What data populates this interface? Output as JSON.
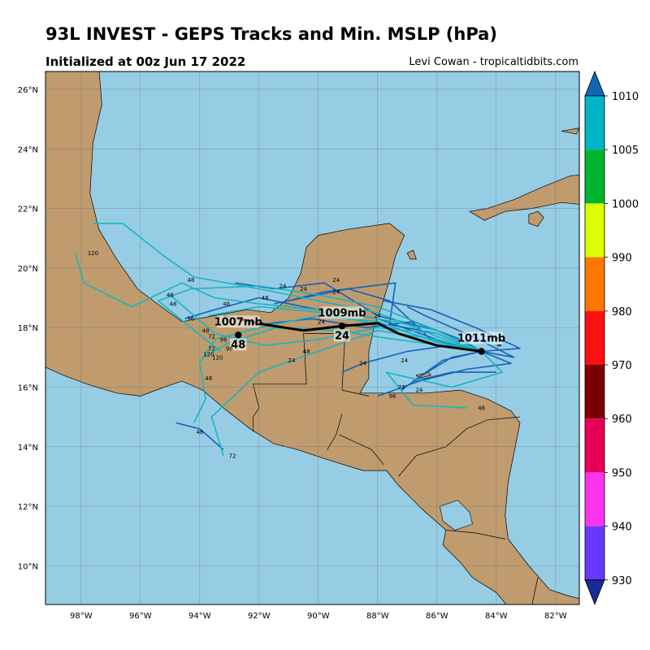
{
  "header": {
    "title": "93L INVEST - GEPS Tracks and Min. MSLP (hPa)",
    "subtitle": "Initialized at 00z Jun 17 2022",
    "credit": "Levi Cowan - tropicaltidbits.com"
  },
  "map": {
    "lon_range": [
      -99.2,
      -81.2
    ],
    "lat_range": [
      8.7,
      26.6
    ],
    "lon_ticks": [
      "98°W",
      "96°W",
      "94°W",
      "92°W",
      "90°W",
      "88°W",
      "86°W",
      "84°W",
      "82°W"
    ],
    "lat_ticks": [
      "10°N",
      "12°N",
      "14°N",
      "16°N",
      "18°N",
      "20°N",
      "22°N",
      "24°N",
      "26°N"
    ],
    "colors": {
      "ocean": "#96cde4",
      "land": "#bf9b6e",
      "mean_track": "#000000",
      "track_dark": "#1560bd",
      "track_light": "#18b4c2"
    }
  },
  "mean_track": {
    "points": [
      [
        -84.5,
        17.2
      ],
      [
        -86.0,
        17.4
      ],
      [
        -87.3,
        17.8
      ],
      [
        -88.0,
        18.15
      ],
      [
        -89.2,
        18.05
      ],
      [
        -90.5,
        17.9
      ],
      [
        -91.8,
        18.1
      ],
      [
        -92.7,
        18.3
      ]
    ],
    "labels": [
      {
        "lon": -84.5,
        "lat": 17.2,
        "text": "1011mb",
        "pos": "above"
      },
      {
        "lon": -89.2,
        "lat": 18.05,
        "text": "1009mb",
        "pos": "above"
      },
      {
        "lon": -89.2,
        "lat": 18.05,
        "text": "24",
        "pos": "below"
      },
      {
        "lon": -92.7,
        "lat": 17.75,
        "text": "1007mb",
        "pos": "above"
      },
      {
        "lon": -92.7,
        "lat": 17.75,
        "text": "48",
        "pos": "below"
      }
    ]
  },
  "tracks": [
    {
      "color": "dark",
      "points": [
        [
          -84.5,
          17.2
        ],
        [
          -86,
          17.6
        ],
        [
          -88,
          18.3
        ],
        [
          -90,
          18.6
        ],
        [
          -92,
          19.0
        ],
        [
          -93.5,
          18.6
        ],
        [
          -94.5,
          18.3
        ]
      ]
    },
    {
      "color": "dark",
      "points": [
        [
          -84.5,
          17.2
        ],
        [
          -86,
          17.9
        ],
        [
          -88,
          18.4
        ],
        [
          -89.8,
          19.5
        ],
        [
          -91.5,
          19.3
        ],
        [
          -92.8,
          19.5
        ]
      ]
    },
    {
      "color": "dark",
      "points": [
        [
          -84.5,
          17.2
        ],
        [
          -86.2,
          17.6
        ],
        [
          -87.6,
          18.9
        ],
        [
          -89,
          19.3
        ],
        [
          -90.5,
          19.0
        ],
        [
          -91.5,
          18.8
        ]
      ]
    },
    {
      "color": "dark",
      "points": [
        [
          -84.5,
          17.2
        ],
        [
          -85.8,
          16.9
        ],
        [
          -86.8,
          16.2
        ],
        [
          -85.5,
          16.5
        ],
        [
          -84.0,
          16.5
        ]
      ]
    },
    {
      "color": "dark",
      "points": [
        [
          -84.5,
          17.2
        ],
        [
          -85.6,
          17.4
        ],
        [
          -87.0,
          17.2
        ],
        [
          -88.5,
          16.8
        ],
        [
          -89.2,
          16.5
        ]
      ]
    },
    {
      "color": "dark",
      "points": [
        [
          -84.5,
          17.2
        ],
        [
          -85.2,
          17.6
        ],
        [
          -86.8,
          18.2
        ],
        [
          -88.4,
          18.0
        ],
        [
          -90.2,
          18.3
        ],
        [
          -92.0,
          18.1
        ],
        [
          -93.2,
          18.4
        ]
      ]
    },
    {
      "color": "dark",
      "points": [
        [
          -84.5,
          17.2
        ],
        [
          -83.4,
          17.0
        ],
        [
          -84.8,
          17.7
        ],
        [
          -86.4,
          18.4
        ],
        [
          -87.0,
          18.7
        ]
      ]
    },
    {
      "color": "dark",
      "points": [
        [
          -84.5,
          17.2
        ],
        [
          -83.5,
          16.8
        ],
        [
          -85.0,
          16.6
        ],
        [
          -86.6,
          16.2
        ],
        [
          -88.0,
          15.7
        ]
      ]
    },
    {
      "color": "dark",
      "points": [
        [
          -84.5,
          17.2
        ],
        [
          -86.0,
          17.8
        ],
        [
          -87.6,
          18.1
        ],
        [
          -87.4,
          19.5
        ],
        [
          -89.8,
          19.2
        ],
        [
          -91.0,
          18.9
        ]
      ]
    },
    {
      "color": "dark",
      "points": [
        [
          -84.5,
          17.2
        ],
        [
          -83.2,
          17.3
        ],
        [
          -84.7,
          18.0
        ],
        [
          -86.2,
          18.6
        ],
        [
          -87.8,
          18.9
        ]
      ]
    },
    {
      "color": "dark",
      "points": [
        [
          -94.8,
          14.8
        ],
        [
          -94.0,
          14.6
        ],
        [
          -93.2,
          13.9
        ]
      ]
    },
    {
      "color": "dark",
      "points": [
        [
          -84.5,
          17.2
        ],
        [
          -85.5,
          17.0
        ],
        [
          -86.5,
          16.4
        ],
        [
          -87.2,
          15.9
        ]
      ]
    },
    {
      "color": "light",
      "points": [
        [
          -84.5,
          17.2
        ],
        [
          -86.0,
          17.5
        ],
        [
          -88.0,
          18.2
        ],
        [
          -90.0,
          18.4
        ],
        [
          -92.0,
          18.0
        ],
        [
          -93.5,
          17.6
        ],
        [
          -94.0,
          16.8
        ],
        [
          -93.8,
          15.6
        ],
        [
          -94.2,
          14.8
        ]
      ]
    },
    {
      "color": "light",
      "points": [
        [
          -84.5,
          17.2
        ],
        [
          -86,
          17.7
        ],
        [
          -88,
          18.5
        ],
        [
          -90,
          18.9
        ],
        [
          -92,
          19.3
        ],
        [
          -94.2,
          19.7
        ],
        [
          -95.2,
          20.4
        ],
        [
          -96.6,
          21.5
        ],
        [
          -97.6,
          21.5
        ]
      ]
    },
    {
      "color": "light",
      "points": [
        [
          -84.5,
          17.2
        ],
        [
          -86,
          17.9
        ],
        [
          -88,
          18.3
        ],
        [
          -90,
          18.6
        ],
        [
          -92,
          18.8
        ],
        [
          -93.5,
          19.0
        ],
        [
          -94.6,
          19.5
        ],
        [
          -96.3,
          18.7
        ],
        [
          -97.9,
          19.5
        ],
        [
          -98.2,
          20.5
        ]
      ]
    },
    {
      "color": "light",
      "points": [
        [
          -84.5,
          17.2
        ],
        [
          -86,
          17.8
        ],
        [
          -88,
          18.0
        ],
        [
          -90,
          17.6
        ],
        [
          -91.8,
          17.4
        ],
        [
          -93.5,
          17.8
        ],
        [
          -95.0,
          19.1
        ]
      ]
    },
    {
      "color": "light",
      "points": [
        [
          -84.5,
          17.2
        ],
        [
          -83.8,
          16.5
        ],
        [
          -85.5,
          16.0
        ],
        [
          -87.3,
          16.4
        ],
        [
          -87.7,
          16.5
        ],
        [
          -86.8,
          15.4
        ],
        [
          -85.0,
          15.3
        ]
      ]
    },
    {
      "color": "light",
      "points": [
        [
          -84.5,
          17.2
        ],
        [
          -86,
          17.9
        ],
        [
          -88,
          18.7
        ],
        [
          -90,
          19.1
        ],
        [
          -92,
          19.4
        ],
        [
          -94.3,
          19.3
        ],
        [
          -95.4,
          18.9
        ],
        [
          -94.3,
          18.0
        ],
        [
          -93.3,
          17.2
        ]
      ]
    },
    {
      "color": "light",
      "points": [
        [
          -84.5,
          17.2
        ],
        [
          -86,
          17.6
        ],
        [
          -88,
          17.9
        ],
        [
          -90,
          17.2
        ],
        [
          -92,
          16.5
        ],
        [
          -93.6,
          15.0
        ],
        [
          -93.2,
          13.7
        ]
      ]
    },
    {
      "color": "light",
      "points": [
        [
          -84.5,
          17.2
        ],
        [
          -85.8,
          17.4
        ],
        [
          -87.4,
          17.6
        ],
        [
          -89.4,
          17.9
        ],
        [
          -91.4,
          18.0
        ],
        [
          -93.0,
          17.5
        ],
        [
          -93.9,
          17.0
        ]
      ]
    },
    {
      "color": "light",
      "points": [
        [
          -84.5,
          17.2
        ],
        [
          -85.5,
          17.4
        ],
        [
          -87.2,
          17.9
        ],
        [
          -89.8,
          18.5
        ],
        [
          -92.0,
          18.7
        ],
        [
          -93.7,
          18.4
        ]
      ]
    }
  ],
  "hour_labels": [
    {
      "lon": -89.4,
      "lat": 19.6,
      "text": "24"
    },
    {
      "lon": -89.4,
      "lat": 19.2,
      "text": "24"
    },
    {
      "lon": -90.5,
      "lat": 19.3,
      "text": "24"
    },
    {
      "lon": -91.2,
      "lat": 19.4,
      "text": "24"
    },
    {
      "lon": -91.8,
      "lat": 19.0,
      "text": "48"
    },
    {
      "lon": -93.1,
      "lat": 18.8,
      "text": "48"
    },
    {
      "lon": -94.3,
      "lat": 19.6,
      "text": "48"
    },
    {
      "lon": -95.0,
      "lat": 19.1,
      "text": "48"
    },
    {
      "lon": -94.9,
      "lat": 18.8,
      "text": "48"
    },
    {
      "lon": -94.3,
      "lat": 18.3,
      "text": "96"
    },
    {
      "lon": -93.8,
      "lat": 17.9,
      "text": "48"
    },
    {
      "lon": -93.6,
      "lat": 17.7,
      "text": "72"
    },
    {
      "lon": -93.2,
      "lat": 17.6,
      "text": "96"
    },
    {
      "lon": -93.6,
      "lat": 17.3,
      "text": "72"
    },
    {
      "lon": -93.0,
      "lat": 17.3,
      "text": "96"
    },
    {
      "lon": -93.7,
      "lat": 17.1,
      "text": "120"
    },
    {
      "lon": -93.4,
      "lat": 17.0,
      "text": "120"
    },
    {
      "lon": -93.7,
      "lat": 16.3,
      "text": "48"
    },
    {
      "lon": -90.4,
      "lat": 17.2,
      "text": "48"
    },
    {
      "lon": -90.9,
      "lat": 16.9,
      "text": "24"
    },
    {
      "lon": -89.9,
      "lat": 18.2,
      "text": "24"
    },
    {
      "lon": -88.5,
      "lat": 16.8,
      "text": "24"
    },
    {
      "lon": -87.1,
      "lat": 16.9,
      "text": "24"
    },
    {
      "lon": -86.6,
      "lat": 15.9,
      "text": "24"
    },
    {
      "lon": -87.2,
      "lat": 16.0,
      "text": "72"
    },
    {
      "lon": -87.5,
      "lat": 15.7,
      "text": "96"
    },
    {
      "lon": -84.5,
      "lat": 15.3,
      "text": "48"
    },
    {
      "lon": -94.0,
      "lat": 14.5,
      "text": "48"
    },
    {
      "lon": -92.9,
      "lat": 13.7,
      "text": "72"
    },
    {
      "lon": -97.6,
      "lat": 20.5,
      "text": "120"
    },
    {
      "lon": -88.0,
      "lat": 18.4,
      "text": "24"
    }
  ],
  "colorbar": {
    "ticks": [
      "1010",
      "1005",
      "1000",
      "990",
      "980",
      "970",
      "960",
      "950",
      "940",
      "930"
    ],
    "colors": [
      "#00b5c5",
      "#00b52e",
      "#d9ff00",
      "#ff7700",
      "#ff0f0f",
      "#7a0000",
      "#e60057",
      "#ff33ee",
      "#653aff"
    ],
    "top_extension": "#1266b8",
    "bottom_extension": "#1b2a99"
  }
}
